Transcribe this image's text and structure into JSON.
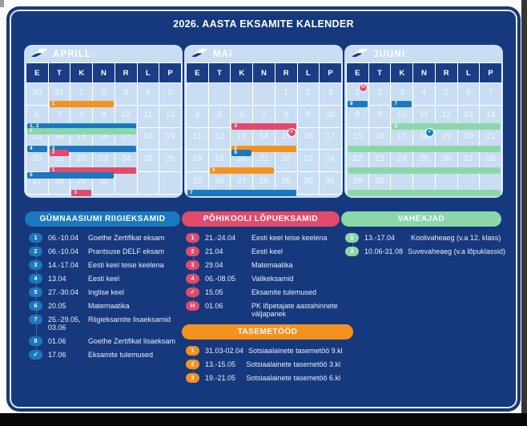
{
  "title": "2026. AASTA EKSAMITE KALENDER",
  "colors": {
    "blue": "#1B78BE",
    "crimson": "#E24A6B",
    "orange": "#F4921F",
    "green": "#8CD7AA",
    "navy_card": "#16387D",
    "calendar_panel": "#C9DEF2",
    "header_cell": "#1A3D85"
  },
  "weekdays": [
    "E",
    "T",
    "K",
    "N",
    "R",
    "L",
    "P"
  ],
  "months": [
    {
      "name": "APRILL",
      "weeks": [
        [
          "30",
          "31",
          "1",
          "2",
          "3",
          "4",
          "5"
        ],
        [
          "6",
          "7",
          "8",
          "9",
          "10",
          "11",
          "12"
        ],
        [
          "13",
          "14",
          "15",
          "16",
          "17",
          "18",
          "19"
        ],
        [
          "20",
          "21",
          "22",
          "23",
          "24",
          "25",
          "26"
        ],
        [
          "27",
          "28",
          "29",
          "30",
          "",
          "",
          ""
        ]
      ],
      "bars": [
        {
          "row": 0,
          "from": 1,
          "to": 3,
          "color": "orange",
          "label": "1",
          "slot": "bottom"
        },
        {
          "row": 1,
          "from": 0,
          "to": 4,
          "color": "blue",
          "label": "1, 2",
          "slot": "bottom"
        },
        {
          "row": 2,
          "from": 0,
          "to": 4,
          "color": "green",
          "label": "1",
          "slot": "top"
        },
        {
          "row": 2,
          "from": 0,
          "to": 0,
          "color": "blue",
          "label": "4",
          "slot": "bottom"
        },
        {
          "row": 2,
          "from": 1,
          "to": 4,
          "color": "blue",
          "label": "3",
          "slot": "bottom"
        },
        {
          "row": 3,
          "from": 1,
          "to": 1,
          "color": "crimson",
          "label": "2",
          "slot": "top"
        },
        {
          "row": 3,
          "from": 1,
          "to": 4,
          "color": "crimson",
          "label": "1",
          "slot": "bottom"
        },
        {
          "row": 4,
          "from": 0,
          "to": 3,
          "color": "blue",
          "label": "5",
          "slot": "top"
        },
        {
          "row": 4,
          "from": 2,
          "to": 2,
          "color": "crimson",
          "label": "3",
          "slot": "bottom"
        }
      ],
      "badges": []
    },
    {
      "name": "MAI",
      "weeks": [
        [
          "",
          "",
          "",
          "",
          "1",
          "2",
          "3"
        ],
        [
          "4",
          "5",
          "6",
          "7",
          "8",
          "9",
          "10"
        ],
        [
          "11",
          "12",
          "13",
          "14",
          "15",
          "16",
          "17"
        ],
        [
          "18",
          "19",
          "20",
          "21",
          "22",
          "23",
          "24"
        ],
        [
          "25",
          "26",
          "27",
          "28",
          "29",
          "30",
          "31"
        ]
      ],
      "bars": [
        {
          "row": 1,
          "from": 2,
          "to": 4,
          "color": "crimson",
          "label": "4",
          "slot": "bottom"
        },
        {
          "row": 2,
          "from": 2,
          "to": 4,
          "color": "orange",
          "label": "2",
          "slot": "bottom"
        },
        {
          "row": 3,
          "from": 2,
          "to": 2,
          "color": "blue",
          "label": "6",
          "slot": "top"
        },
        {
          "row": 3,
          "from": 1,
          "to": 3,
          "color": "orange",
          "label": "3",
          "slot": "bottom"
        },
        {
          "row": 4,
          "from": 0,
          "to": 4,
          "color": "blue",
          "label": "7",
          "slot": "bottom"
        }
      ],
      "badges": [
        {
          "row": 2,
          "col": 4,
          "color": "crimson",
          "glyph": "✓"
        }
      ]
    },
    {
      "name": "JUUNI",
      "weeks": [
        [
          "1",
          "2",
          "3",
          "4",
          "5",
          "6",
          "7"
        ],
        [
          "8",
          "9",
          "10",
          "11",
          "12",
          "13",
          "14"
        ],
        [
          "15",
          "16",
          "17",
          "18",
          "19",
          "20",
          "21"
        ],
        [
          "22",
          "23",
          "24",
          "25",
          "26",
          "27",
          "28"
        ],
        [
          "29",
          "30",
          "",
          "",
          "",
          "",
          ""
        ]
      ],
      "bars": [
        {
          "row": 0,
          "from": 0,
          "to": 0,
          "color": "blue",
          "label": "8",
          "slot": "bottom"
        },
        {
          "row": 0,
          "from": 2,
          "to": 2,
          "color": "blue",
          "label": "7",
          "slot": "bottom"
        },
        {
          "row": 1,
          "from": 2,
          "to": 6,
          "color": "green",
          "label": "2",
          "slot": "bottom"
        },
        {
          "row": 2,
          "from": 0,
          "to": 6,
          "color": "green",
          "label": "",
          "slot": "bottom"
        },
        {
          "row": 3,
          "from": 0,
          "to": 6,
          "color": "green",
          "label": "",
          "slot": "bottom"
        },
        {
          "row": 4,
          "from": 0,
          "to": 6,
          "color": "green",
          "label": "",
          "slot": "bottom"
        }
      ],
      "badges": [
        {
          "row": 0,
          "col": 0,
          "color": "crimson",
          "glyph": "H"
        },
        {
          "row": 2,
          "col": 3,
          "color": "blue",
          "glyph": "✓"
        }
      ]
    }
  ],
  "legends": [
    {
      "id": "gymnaasium",
      "title": "GÜMNAASIUMI RIIGIEKSAMID",
      "color": "blue",
      "items": [
        {
          "badge": "1",
          "date": "06.-10.04",
          "desc": "Goethe Zertifikat eksam"
        },
        {
          "badge": "2",
          "date": "06.-10.04",
          "desc": "Prantsuse DELF eksam"
        },
        {
          "badge": "3",
          "date": "14.-17.04",
          "desc": "Eesti keel teise keelena"
        },
        {
          "badge": "4",
          "date": "13.04",
          "desc": "Eesti keel"
        },
        {
          "badge": "5",
          "date": "27.-30.04",
          "desc": "Inglise keel"
        },
        {
          "badge": "6",
          "date": "20.05",
          "desc": "Matemaatika"
        },
        {
          "badge": "7",
          "date": "25.-29.05,\n03.06",
          "desc": "Riigieksamite lisaeksamid"
        },
        {
          "badge": "8",
          "date": "01.06",
          "desc": "Goethe Zertifikat lisaeksam"
        },
        {
          "badge": "✓",
          "date": "17.06",
          "desc": "Eksamite tulemused"
        }
      ]
    },
    {
      "id": "pohikool",
      "title": "PÕHIKOOLI LÕPUEKSAMID",
      "color": "crimson",
      "items": [
        {
          "badge": "1",
          "date": "21.-24.04",
          "desc": "Eesti keel teise keelena"
        },
        {
          "badge": "2",
          "date": "21.04",
          "desc": "Eesti keel"
        },
        {
          "badge": "3",
          "date": "29.04",
          "desc": "Matemaatika"
        },
        {
          "badge": "4",
          "date": "06.-08.05",
          "desc": "Valikeksamid"
        },
        {
          "badge": "✓",
          "date": "15.05",
          "desc": "Eksamite tulemused"
        },
        {
          "badge": "H",
          "date": "01.06",
          "desc": "PK lõpetajate aastahinnete\nväljapanek"
        }
      ]
    },
    {
      "id": "vaheajad",
      "title": "VAHEAJAD",
      "color": "green",
      "items": [
        {
          "badge": "1",
          "date": "13.-17.04",
          "desc": "Koolivaheaeg (v.a 12. klass)"
        },
        {
          "badge": "2",
          "date": "10.06-31.08",
          "desc": "Suvevaheaeg (v.a lõpuklassid)"
        }
      ]
    },
    {
      "id": "tasemetood",
      "title": "TASEMETÖÖD",
      "color": "orange",
      "items": [
        {
          "badge": "1",
          "date": "31.03-02.04",
          "desc": "Sotsiaalainete tasemetöö 9.kl"
        },
        {
          "badge": "2",
          "date": "13.-15.05",
          "desc": "Sotsiaalainete tasemetöö 3.kl"
        },
        {
          "badge": "3",
          "date": "19.-21.05",
          "desc": "Sotsiaalainete tasemetöö 6.kl"
        }
      ]
    }
  ]
}
